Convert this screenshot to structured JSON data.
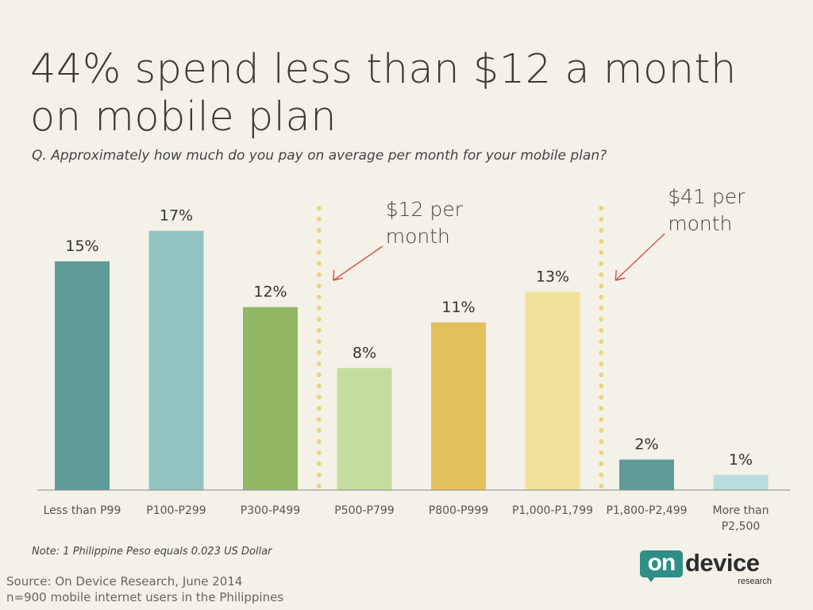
{
  "header": {
    "title_line1": "44% spend less than $12 a month",
    "title_line2": "on mobile plan",
    "question": "Q. Approximately how much do you pay on average per month for your mobile plan?"
  },
  "chart_data": {
    "type": "bar",
    "title": "",
    "xlabel": "",
    "ylabel": "",
    "categories": [
      [
        "Less than P99"
      ],
      [
        "P100-P299"
      ],
      [
        "P300-P499"
      ],
      [
        "P500-P799"
      ],
      [
        "P800-P999"
      ],
      [
        "P1,000-P1,799"
      ],
      [
        "P1,800-P2,499"
      ],
      [
        "More than",
        "P2,500"
      ]
    ],
    "values": [
      15,
      17,
      12,
      8,
      11,
      13,
      2,
      1
    ],
    "value_labels": [
      "15%",
      "17%",
      "12%",
      "8%",
      "11%",
      "13%",
      "2%",
      "1%"
    ],
    "bar_colors": [
      "#5f9c97",
      "#93c4c1",
      "#93b765",
      "#c4dc9c",
      "#e2c05c",
      "#efe19a",
      "#5f9c97",
      "#b9dcdc"
    ],
    "annotations": [
      {
        "text_lines": [
          "$12 per",
          "month"
        ],
        "after_category_index": 2,
        "color": "#d9534a"
      },
      {
        "text_lines": [
          "$41 per",
          "month"
        ],
        "after_category_index": 5,
        "color": "#d9534a"
      }
    ],
    "divider_color": "#ecd57a",
    "grid": false,
    "legend": "none"
  },
  "footer": {
    "note": "Note: 1 Philippine Peso equals 0.023 US Dollar",
    "source_line1": "Source: On Device Research, June 2014",
    "source_line2": "n=900 mobile internet users in the Philippines"
  },
  "logo": {
    "on_text": "on",
    "device_text": "device",
    "research_text": "research"
  }
}
